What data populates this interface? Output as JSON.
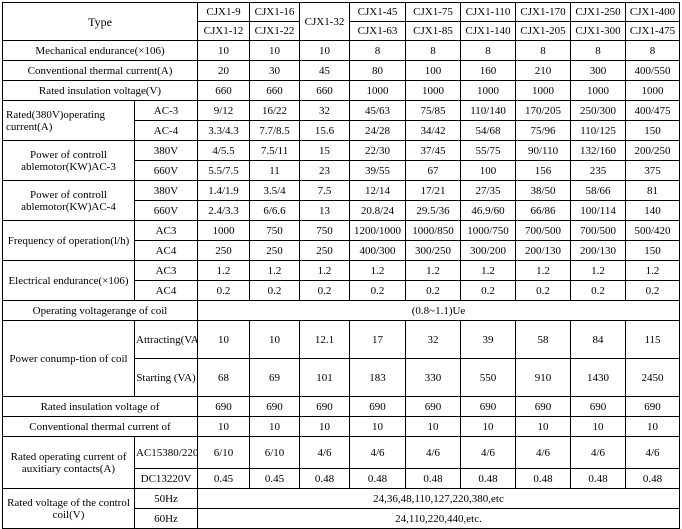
{
  "table": {
    "type_label": "Type",
    "models_top": [
      "CJX1-9",
      "CJX1-16",
      "CJX1-32",
      "CJX1-45",
      "CJX1-75",
      "CJX1-110",
      "CJX1-170",
      "CJX1-250",
      "CJX1-400"
    ],
    "models_bottom": [
      "CJX1-12",
      "CJX1-22",
      "CJX1-63",
      "CJX1-85",
      "CJX1-140",
      "CJX1-205",
      "CJX1-300",
      "CJX1-475"
    ],
    "mech": {
      "label": "Mechanical endurance(×106)",
      "values": [
        "10",
        "10",
        "10",
        "8",
        "8",
        "8",
        "8",
        "8",
        "8"
      ]
    },
    "thermal": {
      "label": "Conventional thermal current(A)",
      "values": [
        "20",
        "30",
        "45",
        "80",
        "100",
        "160",
        "210",
        "300",
        "400/550"
      ]
    },
    "insul": {
      "label": "Rated insulation voltage(V)",
      "values": [
        "660",
        "660",
        "660",
        "1000",
        "1000",
        "1000",
        "1000",
        "1000",
        "1000"
      ]
    },
    "opcur": {
      "label": "Rated(380V)operating current(A)",
      "ac3_label": "AC-3",
      "ac3": [
        "9/12",
        "16/22",
        "32",
        "45/63",
        "75/85",
        "110/140",
        "170/205",
        "250/300",
        "400/475"
      ],
      "ac4_label": "AC-4",
      "ac4": [
        "3.3/4.3",
        "7.7/8.5",
        "15.6",
        "24/28",
        "34/42",
        "54/68",
        "75/96",
        "110/125",
        "150"
      ]
    },
    "pow3": {
      "label": "Power of controll ablemotor(KW)AC-3",
      "v380_label": "380V",
      "v380": [
        "4/5.5",
        "7.5/11",
        "15",
        "22/30",
        "37/45",
        "55/75",
        "90/110",
        "132/160",
        "200/250"
      ],
      "v660_label": "660V",
      "v660": [
        "5.5/7.5",
        "11",
        "23",
        "39/55",
        "67",
        "100",
        "156",
        "235",
        "375"
      ]
    },
    "pow4": {
      "label": "Power of controll ablemotor(KW)AC-4",
      "v380_label": "380V",
      "v380": [
        "1.4/1.9",
        "3.5/4",
        "7.5",
        "12/14",
        "17/21",
        "27/35",
        "38/50",
        "58/66",
        "81"
      ],
      "v660_label": "660V",
      "v660": [
        "2.4/3.3",
        "6/6.6",
        "13",
        "20.8/24",
        "29.5/36",
        "46.9/60",
        "66/86",
        "100/114",
        "140"
      ]
    },
    "freq": {
      "label": "Frequency of operation(l/h)",
      "ac3_label": "AC3",
      "ac3": [
        "1000",
        "750",
        "750",
        "1200/1000",
        "1000/850",
        "1000/750",
        "700/500",
        "700/500",
        "500/420"
      ],
      "ac4_label": "AC4",
      "ac4": [
        "250",
        "250",
        "250",
        "400/300",
        "300/250",
        "300/200",
        "200/130",
        "200/130",
        "150"
      ]
    },
    "elec": {
      "label": "Electrical endurance(×106)",
      "ac3_label": "AC3",
      "ac3": [
        "1.2",
        "1.2",
        "1.2",
        "1.2",
        "1.2",
        "1.2",
        "1.2",
        "1.2",
        "1.2"
      ],
      "ac4_label": "AC4",
      "ac4": [
        "0.2",
        "0.2",
        "0.2",
        "0.2",
        "0.2",
        "0.2",
        "0.2",
        "0.2",
        "0.2"
      ]
    },
    "volt_range": {
      "label": "Operating   voltagerange of coil",
      "value": "(0.8~1.1)Ue"
    },
    "coil_power": {
      "label": "Power conump-tion of coil",
      "attract_label": "Attracting(VA)",
      "attract": [
        "10",
        "10",
        "12.1",
        "17",
        "32",
        "39",
        "58",
        "84",
        "115"
      ],
      "start_label": "Starting (VA)",
      "start": [
        "68",
        "69",
        "101",
        "183",
        "330",
        "550",
        "910",
        "1430",
        "2450"
      ]
    },
    "insul2": {
      "label": "Rated   insulation voltage of",
      "values": [
        "690",
        "690",
        "690",
        "690",
        "690",
        "690",
        "690",
        "690",
        "690"
      ]
    },
    "thermal2": {
      "label": "Conventional thermal   current of",
      "values": [
        "10",
        "10",
        "10",
        "10",
        "10",
        "10",
        "10",
        "10",
        "10"
      ]
    },
    "aux": {
      "label": "Rated operating current of auxitiary contacts(A)",
      "ac15_label": "AC15380/220",
      "ac15": [
        "6/10",
        "6/10",
        "4/6",
        "4/6",
        "4/6",
        "4/6",
        "4/6",
        "4/6",
        "4/6"
      ],
      "dc13_label": "DC13220V",
      "dc13": [
        "0.45",
        "0.45",
        "0.48",
        "0.48",
        "0.48",
        "0.48",
        "0.48",
        "0.48",
        "0.48"
      ]
    },
    "coil_v": {
      "label": "Rated voltage of the control coil(V)",
      "hz50_label": "50Hz",
      "hz50": "24,36,48,110,127,220,380,etc",
      "hz60_label": "60Hz",
      "hz60": "24,110,220,440,etc."
    }
  }
}
